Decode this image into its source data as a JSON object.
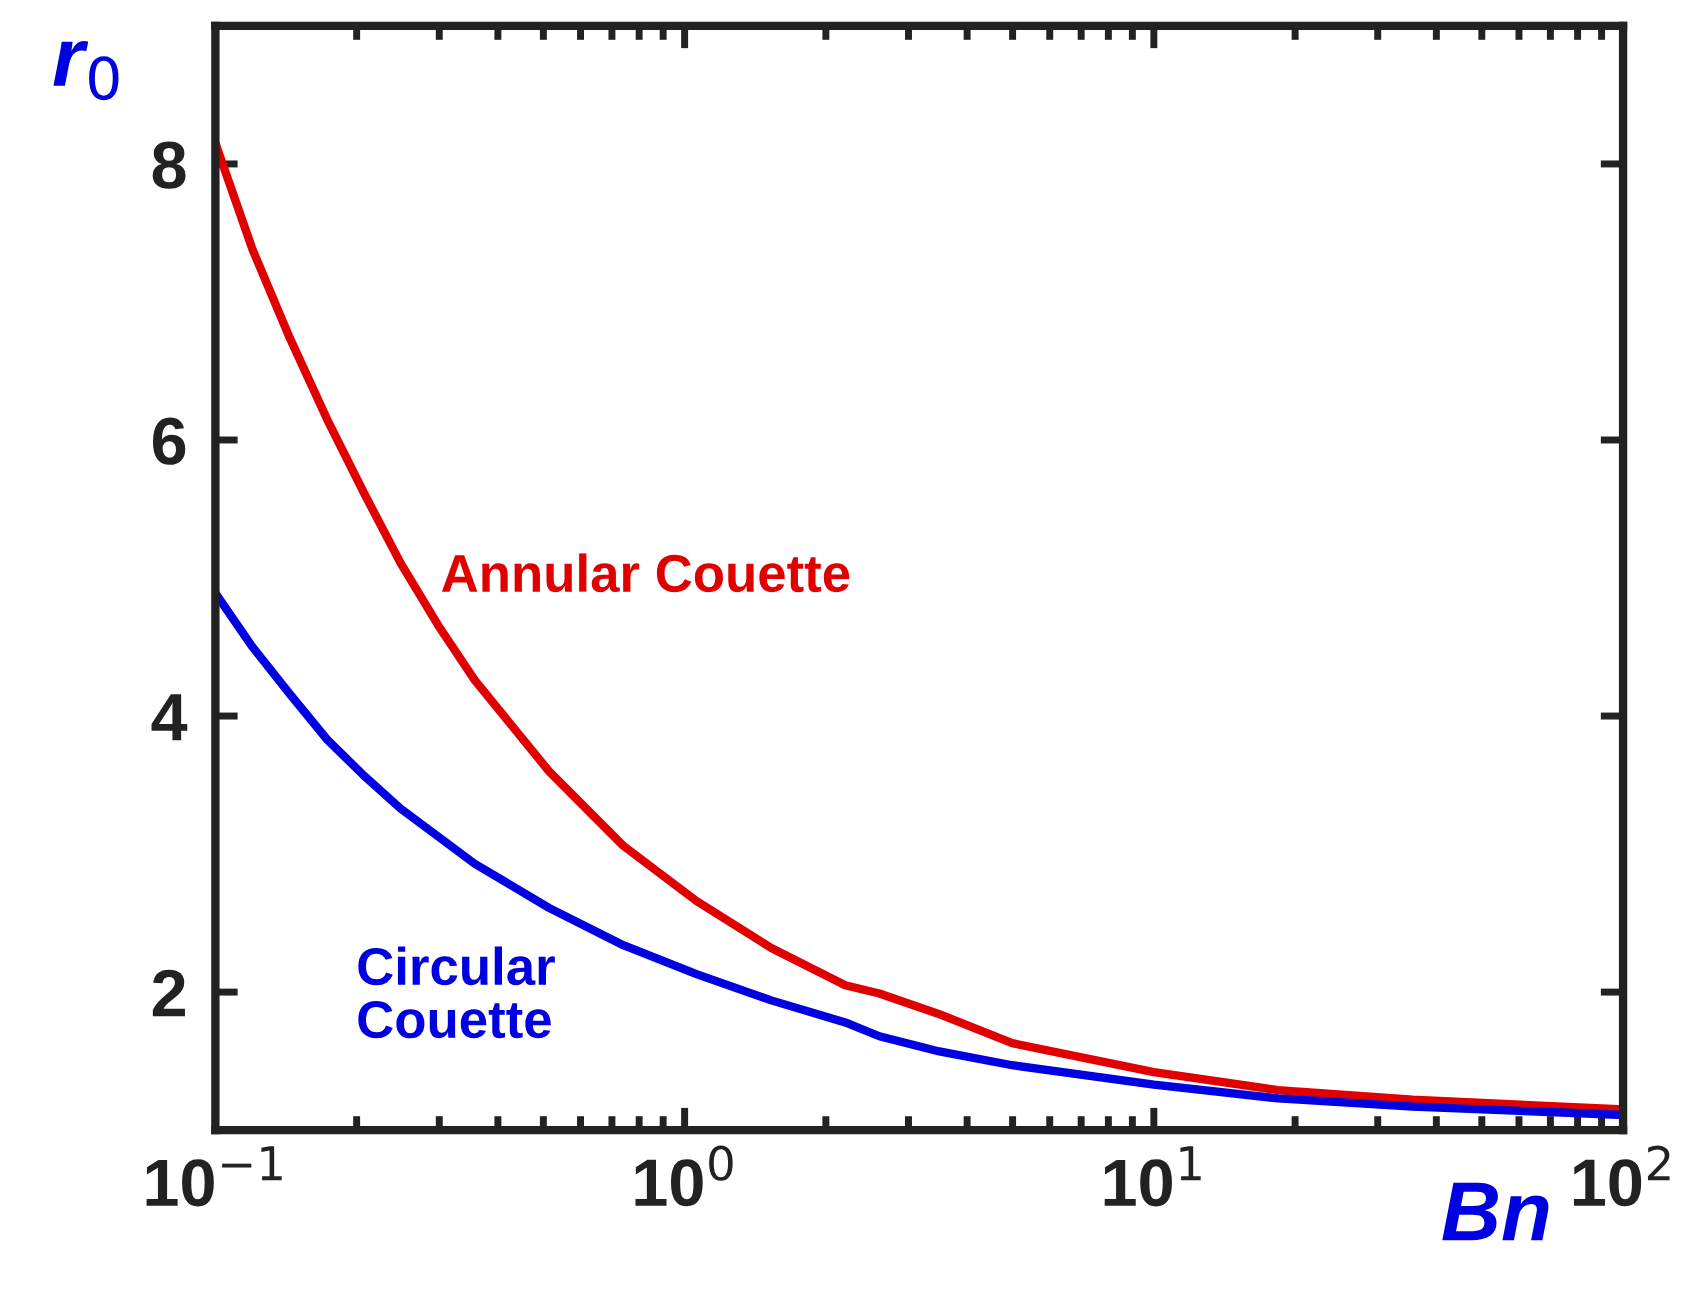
{
  "chart_data": {
    "type": "line",
    "xlabel": "Bn",
    "ylabel": "r$_{0}$",
    "log": "x",
    "xlim": [
      0.1,
      100
    ],
    "ylim": [
      1,
      9
    ],
    "xticks": [
      {
        "value": 0.1,
        "label": "10$^{−1}$"
      },
      {
        "value": 1,
        "label": "10$^{0}$"
      },
      {
        "value": 10,
        "label": "10$^{1}$"
      },
      {
        "value": 100,
        "label": "10$^{2}$"
      }
    ],
    "yticks": [
      2,
      4,
      6,
      8
    ],
    "grid": false,
    "legend": false,
    "line_style": "solid",
    "marker": "none",
    "series": [
      {
        "name": "Annular Couette",
        "color": "#e00000",
        "x": [
          0.1,
          0.12,
          0.144,
          0.173,
          0.207,
          0.248,
          0.298,
          0.357,
          0.514,
          0.74,
          1.06,
          1.53,
          2.2,
          2.6,
          3.49,
          4.99,
          10,
          18.4,
          35.6,
          100
        ],
        "values": [
          8.15,
          7.38,
          6.74,
          6.15,
          5.62,
          5.11,
          4.66,
          4.26,
          3.6,
          3.06,
          2.66,
          2.32,
          2.05,
          1.99,
          1.84,
          1.63,
          1.42,
          1.29,
          1.22,
          1.15
        ]
      },
      {
        "name": "Circular\nCouette",
        "color": "#0000e0",
        "x": [
          0.1,
          0.12,
          0.144,
          0.173,
          0.207,
          0.248,
          0.357,
          0.514,
          0.74,
          1.06,
          1.53,
          2.2,
          2.6,
          3.49,
          4.99,
          10,
          18.4,
          35.6,
          100
        ],
        "values": [
          4.89,
          4.5,
          4.16,
          3.83,
          3.57,
          3.33,
          2.93,
          2.61,
          2.34,
          2.13,
          1.94,
          1.78,
          1.68,
          1.57,
          1.47,
          1.33,
          1.23,
          1.17,
          1.11
        ]
      }
    ]
  }
}
